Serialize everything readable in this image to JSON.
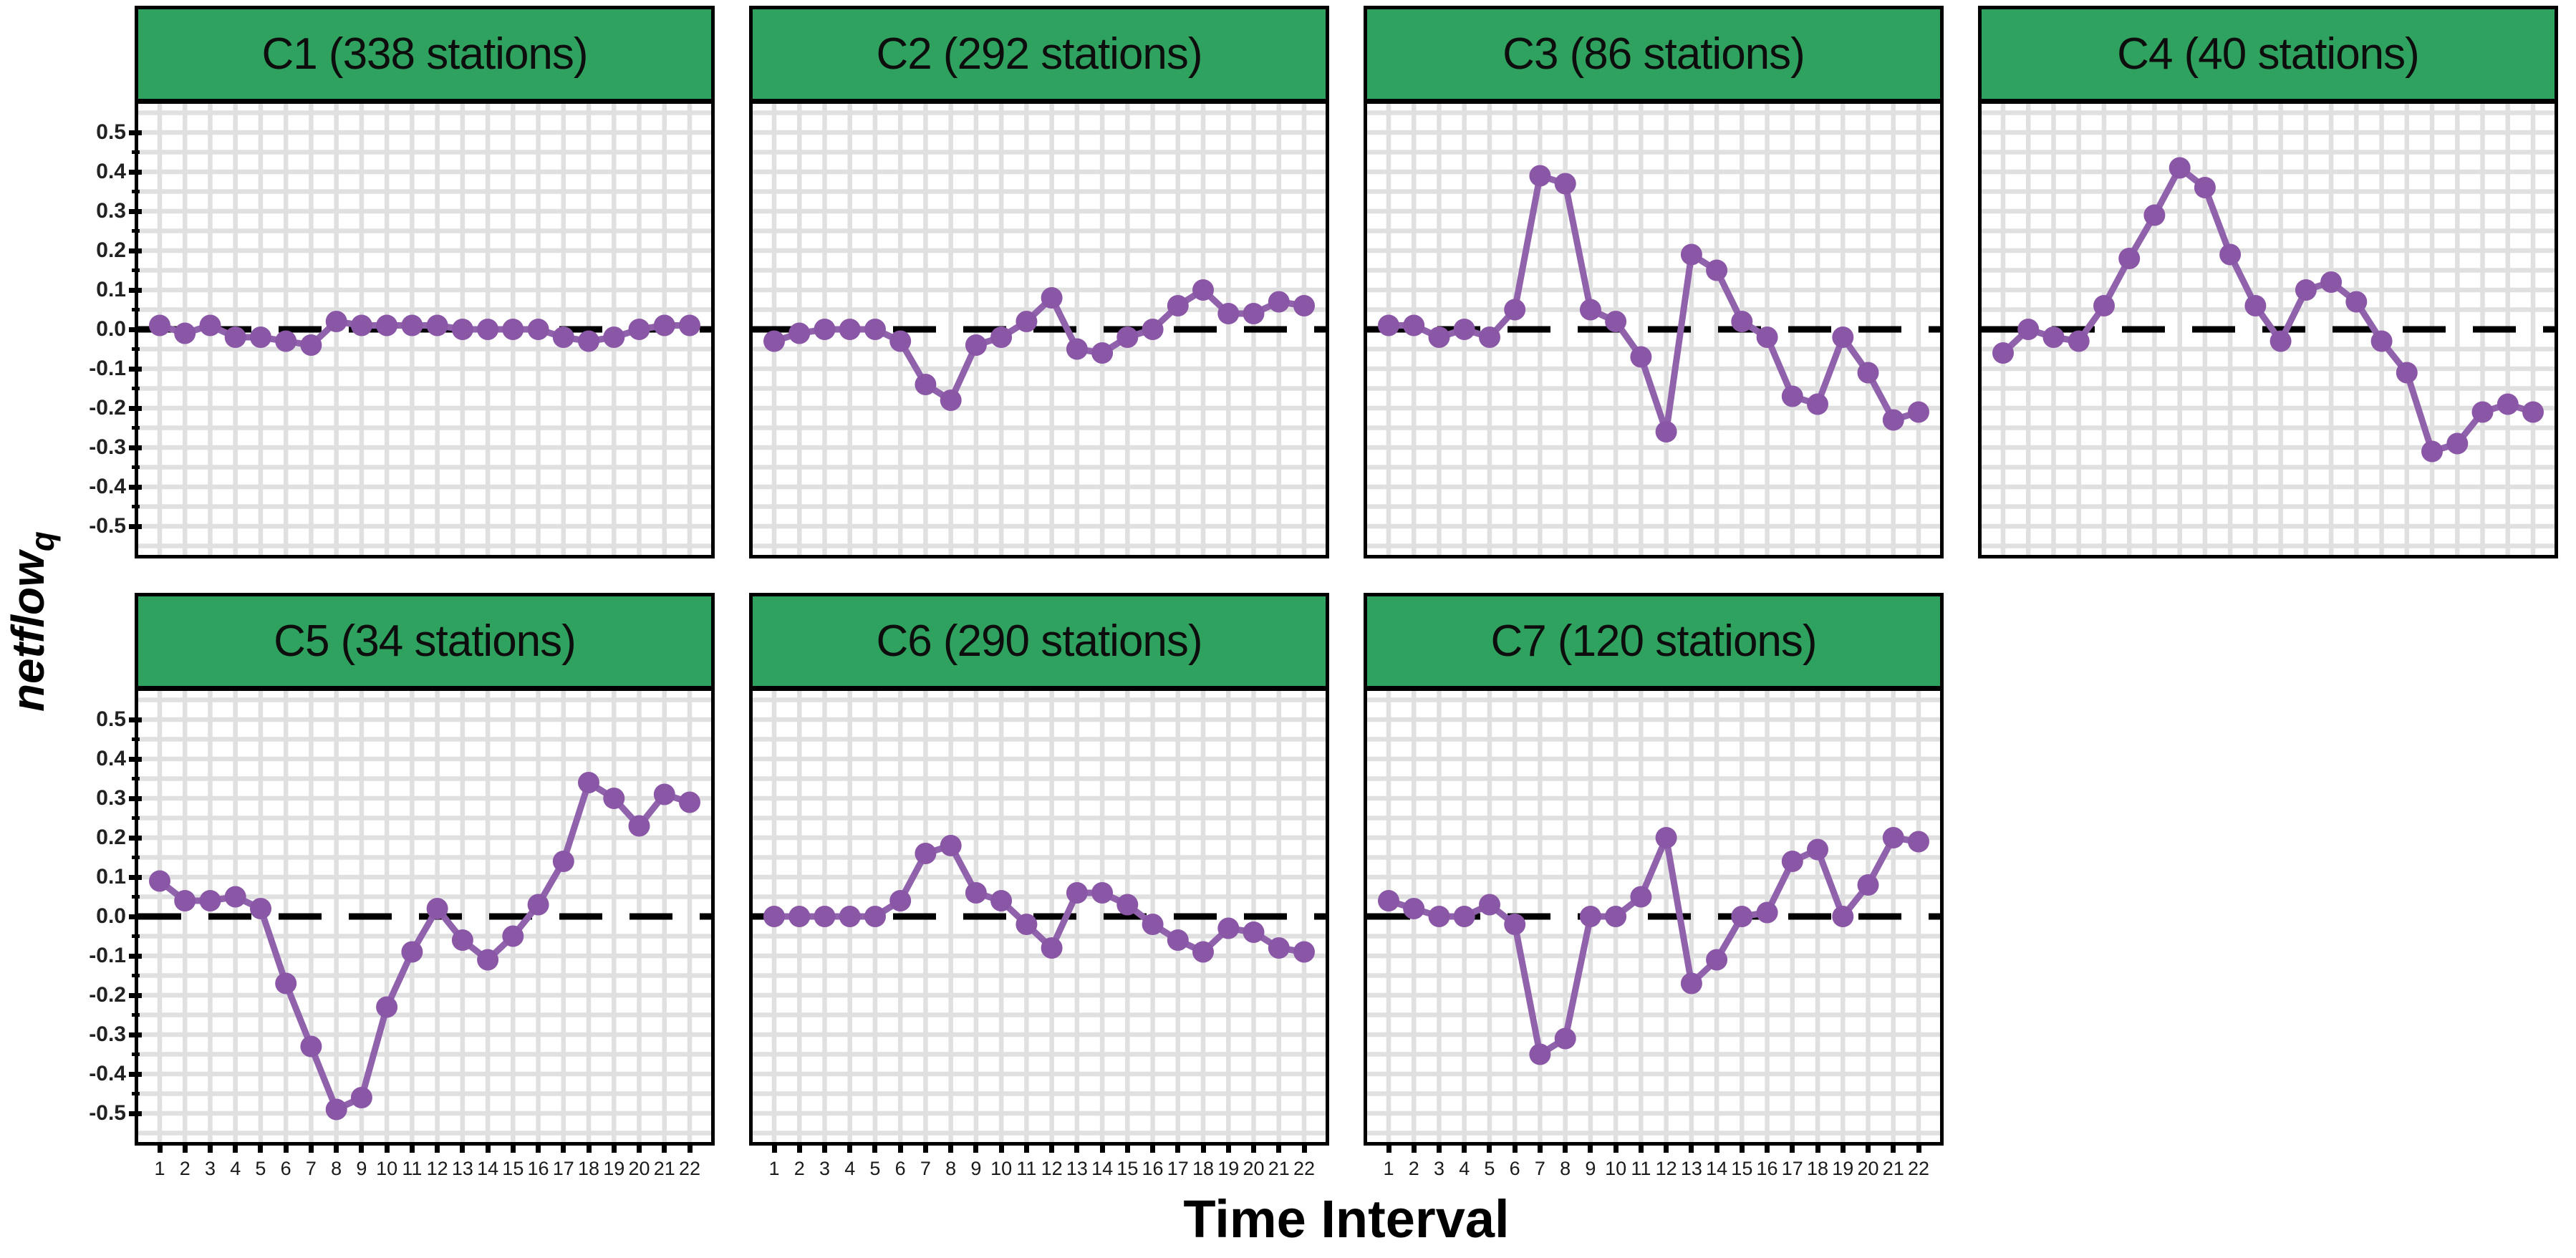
{
  "figure": {
    "x_axis_label": "Time Interval",
    "y_axis_label_main": "netflow",
    "y_axis_label_sub": "q",
    "y_ticks": [
      "0.5",
      "0.4",
      "0.3",
      "0.2",
      "0.1",
      "0.0",
      "-0.1",
      "-0.2",
      "-0.3",
      "-0.4",
      "-0.5"
    ],
    "x_ticks": [
      "1",
      "2",
      "3",
      "4",
      "5",
      "6",
      "7",
      "8",
      "9",
      "10",
      "11",
      "12",
      "13",
      "14",
      "15",
      "16",
      "17",
      "18",
      "19",
      "20",
      "21",
      "22"
    ],
    "colors": {
      "header_green": "#2ea25e",
      "line_purple": "#9062ac",
      "point_purple": "#8a57a6",
      "grid_gray": "#e0e0e0",
      "zero_line_black": "#000000",
      "header_text": "#0d0d0d"
    },
    "grid": "on",
    "zero_reference_line": "dashed"
  },
  "chart_data": [
    {
      "id": "C1",
      "title": "C1 (338 stations)",
      "stations": 338,
      "type": "line",
      "ylim": [
        -0.57,
        0.57
      ],
      "x": [
        1,
        2,
        3,
        4,
        5,
        6,
        7,
        8,
        9,
        10,
        11,
        12,
        13,
        14,
        15,
        16,
        17,
        18,
        19,
        20,
        21,
        22
      ],
      "values": [
        0.01,
        -0.01,
        0.01,
        -0.02,
        -0.02,
        -0.03,
        -0.04,
        0.02,
        0.01,
        0.01,
        0.01,
        0.01,
        0.0,
        0.0,
        0.0,
        0.0,
        -0.02,
        -0.03,
        -0.02,
        0.0,
        0.01,
        0.01
      ],
      "show_y_axis": true,
      "show_x_axis": false
    },
    {
      "id": "C2",
      "title": "C2 (292 stations)",
      "stations": 292,
      "type": "line",
      "ylim": [
        -0.57,
        0.57
      ],
      "x": [
        1,
        2,
        3,
        4,
        5,
        6,
        7,
        8,
        9,
        10,
        11,
        12,
        13,
        14,
        15,
        16,
        17,
        18,
        19,
        20,
        21,
        22
      ],
      "values": [
        -0.03,
        -0.01,
        0.0,
        0.0,
        0.0,
        -0.03,
        -0.14,
        -0.18,
        -0.04,
        -0.02,
        0.02,
        0.08,
        -0.05,
        -0.06,
        -0.02,
        0.0,
        0.06,
        0.1,
        0.04,
        0.04,
        0.07,
        0.06
      ],
      "show_y_axis": false,
      "show_x_axis": false
    },
    {
      "id": "C3",
      "title": "C3 (86 stations)",
      "stations": 86,
      "type": "line",
      "ylim": [
        -0.57,
        0.57
      ],
      "x": [
        1,
        2,
        3,
        4,
        5,
        6,
        7,
        8,
        9,
        10,
        11,
        12,
        13,
        14,
        15,
        16,
        17,
        18,
        19,
        20,
        21,
        22
      ],
      "values": [
        0.01,
        0.01,
        -0.02,
        0.0,
        -0.02,
        0.05,
        0.39,
        0.37,
        0.05,
        0.02,
        -0.07,
        -0.26,
        0.19,
        0.15,
        0.02,
        -0.02,
        -0.17,
        -0.19,
        -0.02,
        -0.11,
        -0.23,
        -0.21
      ],
      "show_y_axis": false,
      "show_x_axis": false
    },
    {
      "id": "C4",
      "title": "C4 (40 stations)",
      "stations": 40,
      "type": "line",
      "ylim": [
        -0.57,
        0.57
      ],
      "x": [
        1,
        2,
        3,
        4,
        5,
        6,
        7,
        8,
        9,
        10,
        11,
        12,
        13,
        14,
        15,
        16,
        17,
        18,
        19,
        20,
        21,
        22
      ],
      "values": [
        -0.06,
        0.0,
        -0.02,
        -0.03,
        0.06,
        0.18,
        0.29,
        0.41,
        0.36,
        0.19,
        0.06,
        -0.03,
        0.1,
        0.12,
        0.07,
        -0.03,
        -0.11,
        -0.31,
        -0.29,
        -0.21,
        -0.19,
        -0.21
      ],
      "show_y_axis": false,
      "show_x_axis": false
    },
    {
      "id": "C5",
      "title": "C5 (34 stations)",
      "stations": 34,
      "type": "line",
      "ylim": [
        -0.57,
        0.57
      ],
      "x": [
        1,
        2,
        3,
        4,
        5,
        6,
        7,
        8,
        9,
        10,
        11,
        12,
        13,
        14,
        15,
        16,
        17,
        18,
        19,
        20,
        21,
        22
      ],
      "values": [
        0.09,
        0.04,
        0.04,
        0.05,
        0.02,
        -0.17,
        -0.33,
        -0.49,
        -0.46,
        -0.23,
        -0.09,
        0.02,
        -0.06,
        -0.11,
        -0.05,
        0.03,
        0.14,
        0.34,
        0.3,
        0.23,
        0.31,
        0.29
      ],
      "show_y_axis": true,
      "show_x_axis": true
    },
    {
      "id": "C6",
      "title": "C6 (290 stations)",
      "stations": 290,
      "type": "line",
      "ylim": [
        -0.57,
        0.57
      ],
      "x": [
        1,
        2,
        3,
        4,
        5,
        6,
        7,
        8,
        9,
        10,
        11,
        12,
        13,
        14,
        15,
        16,
        17,
        18,
        19,
        20,
        21,
        22
      ],
      "values": [
        0.0,
        0.0,
        0.0,
        0.0,
        0.0,
        0.04,
        0.16,
        0.18,
        0.06,
        0.04,
        -0.02,
        -0.08,
        0.06,
        0.06,
        0.03,
        -0.02,
        -0.06,
        -0.09,
        -0.03,
        -0.04,
        -0.08,
        -0.09
      ],
      "show_y_axis": false,
      "show_x_axis": true
    },
    {
      "id": "C7",
      "title": "C7 (120 stations)",
      "stations": 120,
      "type": "line",
      "ylim": [
        -0.57,
        0.57
      ],
      "x": [
        1,
        2,
        3,
        4,
        5,
        6,
        7,
        8,
        9,
        10,
        11,
        12,
        13,
        14,
        15,
        16,
        17,
        18,
        19,
        20,
        21,
        22
      ],
      "values": [
        0.04,
        0.02,
        0.0,
        0.0,
        0.03,
        -0.02,
        -0.35,
        -0.31,
        0.0,
        0.0,
        0.05,
        0.2,
        -0.17,
        -0.11,
        0.0,
        0.01,
        0.14,
        0.17,
        0.0,
        0.08,
        0.2,
        0.19
      ],
      "show_y_axis": false,
      "show_x_axis": true
    }
  ]
}
